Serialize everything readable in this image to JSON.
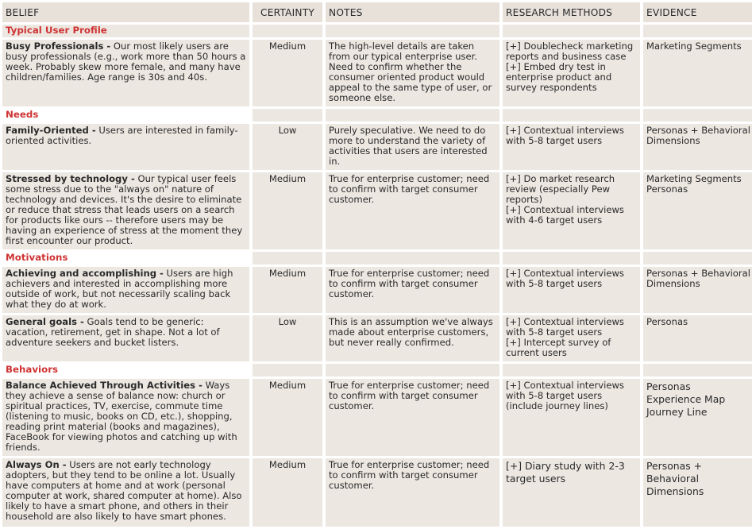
{
  "headers": [
    "BELIEF",
    "CERTAINTY",
    "NOTES",
    "RESEARCH METHODS",
    "EVIDENCE"
  ],
  "sections": {
    "typical_user_profile": "Typical User Profile",
    "needs": "Needs",
    "motivations": "Motivations",
    "behaviors": "Behaviors"
  },
  "rows": [
    {
      "title": "Busy Professionals -",
      "belief": " Our most likely users are busy professionals (e.g., work more than 50 hours a week. Probably skew more female, and many have children/families. Age range is 30s and 40s.",
      "certainty": "Medium",
      "notes": "The high-level details are taken from our typical enterprise user. Need to confirm whether the consumer oriented product would appeal to the same type of user, or someone else.",
      "methods": [
        "[+] Doublecheck marketing reports and business case",
        "[+] Embed dry test in enterprise product and survey respondents"
      ],
      "evidence": [
        "Marketing Segments"
      ]
    },
    {
      "title": "Family-Oriented -",
      "belief": " Users are interested in family-oriented activities.",
      "certainty": "Low",
      "notes": "Purely speculative. We need to do more to understand the variety of activities that users are interested in.",
      "methods": [
        "[+] Contextual interviews with 5-8 target users"
      ],
      "evidence": [
        "Personas + Behavioral Dimensions"
      ]
    },
    {
      "title": "Stressed by technology -",
      "belief": " Our typical user feels some stress due to the \"always on\" nature of technology and devices. It's the desire to eliminate or reduce that stress that leads users on a search for products like ours -- therefore users may be having an experience of stress at the moment they first encounter our product.",
      "certainty": "Medium",
      "notes": "True for enterprise customer; need to confirm with target consumer customer.",
      "methods": [
        "[+] Do market research review (especially Pew reports)",
        "[+] Contextual interviews with 4-6 target users"
      ],
      "evidence": [
        "Marketing Segments",
        "Personas"
      ]
    },
    {
      "title": "Achieving and accomplishing -",
      "belief": " Users are high achievers and interested in accomplishing more outside of work, but not necessarily scaling back what they do at work.",
      "certainty": "Medium",
      "notes": "True for enterprise customer; need to confirm with target consumer customer.",
      "methods": [
        "[+] Contextual interviews with 5-8 target users"
      ],
      "evidence": [
        "Personas + Behavioral Dimensions"
      ]
    },
    {
      "title": "General goals -",
      "belief": " Goals tend to be generic: vacation, retirement, get in shape. Not a lot of adventure seekers and bucket listers.",
      "certainty": "Low",
      "notes": "This is an assumption we've always made about enterprise customers, but never really confirmed.",
      "methods": [
        "[+] Contextual interviews with 5-8 target users",
        "[+] Intercept survey of current users"
      ],
      "evidence": [
        "Personas"
      ]
    },
    {
      "title": "Balance Achieved Through Activities -",
      "belief": " Ways they achieve a sense of balance now: church or spiritual practices, TV, exercise, commute time (listening to music, books on CD, etc.), shopping, reading print material (books and magazines), FaceBook for viewing photos and catching up with friends.",
      "certainty": "Medium",
      "notes": "True for enterprise customer; need to confirm with target consumer customer.",
      "methods": [
        "[+] Contextual interviews with 5-8 target users (include journey lines)"
      ],
      "evidence": [
        "Personas",
        "Experience Map",
        "Journey Line"
      ]
    },
    {
      "title": "Always On -",
      "belief": " Users are not early technology adopters, but they tend to be online a lot. Usually have computers at home and at work (personal computer at work, shared computer at home). Also likely to have a smart phone, and others in their household are also likely to have smart phones.",
      "certainty": "Medium",
      "notes": "True for enterprise customer; need to confirm with target consumer customer.",
      "methods": [
        "[+] Diary study with 2-3 target users"
      ],
      "evidence": [
        "Personas + Behavioral Dimensions"
      ]
    }
  ]
}
